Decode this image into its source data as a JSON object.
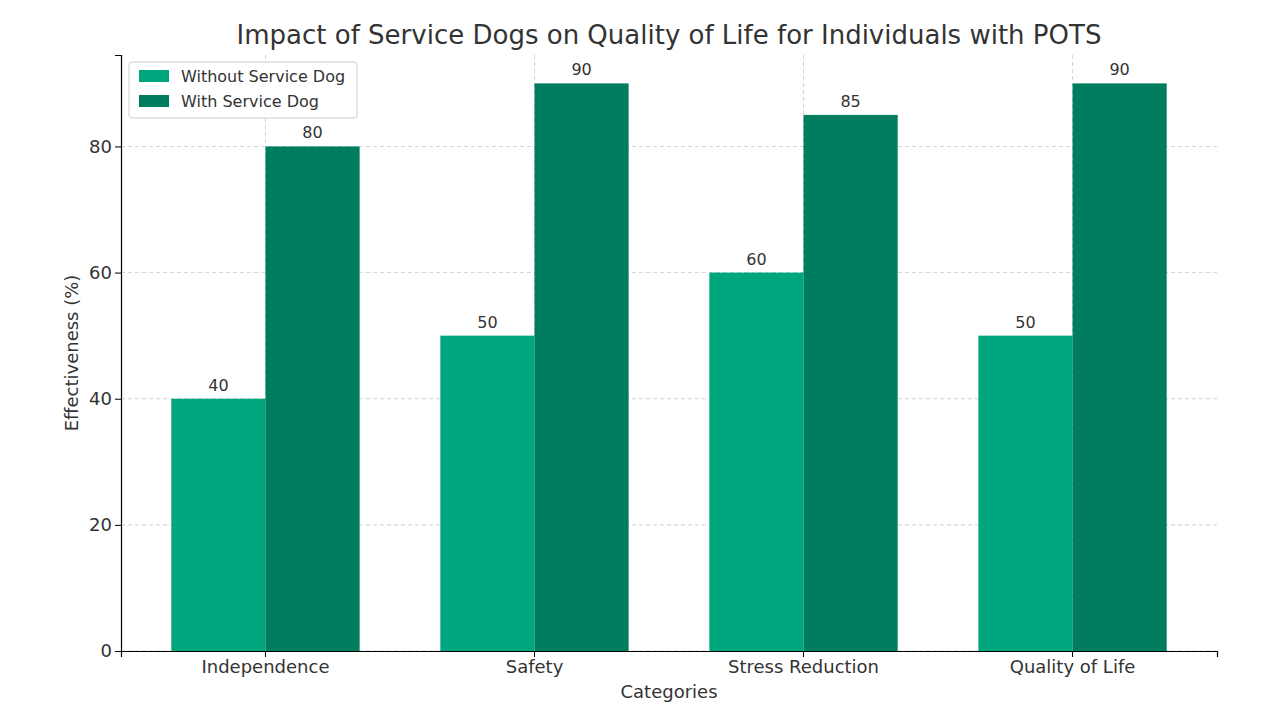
{
  "chart_data": {
    "type": "bar",
    "title": "Impact of Service Dogs on Quality of Life for Individuals with POTS",
    "x_label": "Categories",
    "y_label": "Effectiveness (%)",
    "categories": [
      "Independence",
      "Safety",
      "Stress Reduction",
      "Quality of Life"
    ],
    "series": [
      {
        "name": "Without Service Dog",
        "color": "#00a67e",
        "values": [
          40,
          50,
          60,
          50
        ]
      },
      {
        "name": "With Service Dog",
        "color": "#007c5e",
        "values": [
          80,
          90,
          85,
          90
        ]
      }
    ],
    "ylim": [
      0,
      94.5
    ],
    "yticks": [
      0,
      20,
      40,
      60,
      80
    ],
    "grid": true,
    "legend": "upper left",
    "data_labels": true
  }
}
